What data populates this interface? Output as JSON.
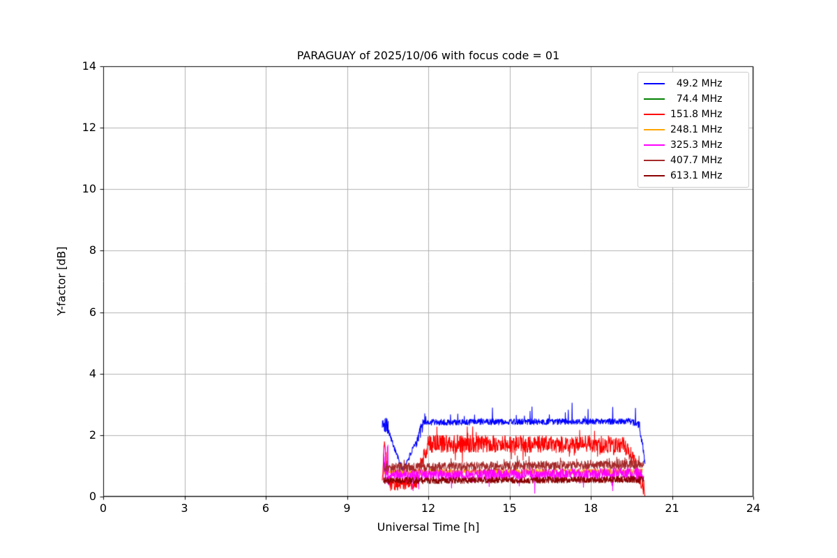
{
  "figure": {
    "title": "PARAGUAY of 2025/10/06 with focus code = 01",
    "xlabel": "Universal Time [h]",
    "ylabel": "Y-factor [dB]"
  },
  "chart_data": {
    "type": "line",
    "title": "PARAGUAY of 2025/10/06 with focus code = 01",
    "xlabel": "Universal Time [h]",
    "ylabel": "Y-factor [dB]",
    "xlim": [
      0,
      24
    ],
    "ylim": [
      0,
      14
    ],
    "x_ticks": [
      0,
      3,
      6,
      9,
      12,
      15,
      18,
      21,
      24
    ],
    "y_ticks": [
      0,
      2,
      4,
      6,
      8,
      10,
      12,
      14
    ],
    "grid": true,
    "grid_color": "#b0b0b0",
    "legend_position": "upper right",
    "series": [
      {
        "name": "  49.2 MHz",
        "color": "#0000ff",
        "seed": 101,
        "segments": [
          {
            "x0": 10.3,
            "x1": 10.52,
            "y0": 2.45,
            "y1": 2.3,
            "noise": 0.28,
            "spike": 0.3,
            "spike_p": 0.06
          },
          {
            "x0": 10.52,
            "x1": 11.05,
            "y0": 2.15,
            "y1": 0.85,
            "noise": 0.1
          },
          {
            "x0": 11.05,
            "x1": 11.55,
            "y0": 0.85,
            "y1": 1.75,
            "noise": 0.1
          },
          {
            "x0": 11.55,
            "x1": 11.9,
            "y0": 1.8,
            "y1": 2.55,
            "noise": 0.22,
            "spike": 0.4,
            "spike_p": 0.05
          },
          {
            "x0": 11.9,
            "x1": 19.45,
            "y0": 2.42,
            "y1": 2.45,
            "noise": 0.1,
            "spike": 0.55,
            "spike_p": 0.03
          },
          {
            "x0": 19.45,
            "x1": 19.8,
            "y0": 2.45,
            "y1": 2.35,
            "noise": 0.12,
            "spike": 0.7,
            "spike_p": 0.04
          },
          {
            "x0": 19.8,
            "x1": 20.0,
            "y0": 2.3,
            "y1": 1.15,
            "noise": 0.15
          }
        ]
      },
      {
        "name": "  74.4 MHz",
        "color": "#008000",
        "seed": 202,
        "segments": []
      },
      {
        "name": "151.8 MHz",
        "color": "#ff0000",
        "seed": 303,
        "segments": [
          {
            "x0": 10.3,
            "x1": 10.38,
            "y0": 0.4,
            "y1": 1.85,
            "noise": 0.15
          },
          {
            "x0": 10.38,
            "x1": 10.55,
            "y0": 1.8,
            "y1": 0.4,
            "noise": 0.15
          },
          {
            "x0": 10.55,
            "x1": 11.55,
            "y0": 0.4,
            "y1": 0.45,
            "noise": 0.2,
            "drop": 0.35,
            "drop_p": 0.1
          },
          {
            "x0": 11.55,
            "x1": 12.0,
            "y0": 0.55,
            "y1": 1.7,
            "noise": 0.3
          },
          {
            "x0": 12.0,
            "x1": 19.25,
            "y0": 1.72,
            "y1": 1.7,
            "noise": 0.28,
            "spike": 0.35,
            "spike_p": 0.05,
            "drop": 0.45,
            "drop_p": 0.05
          },
          {
            "x0": 19.25,
            "x1": 19.65,
            "y0": 1.6,
            "y1": 1.2,
            "noise": 0.25
          },
          {
            "x0": 19.65,
            "x1": 20.0,
            "y0": 1.1,
            "y1": 0.15,
            "noise": 0.3,
            "drop": 0.5,
            "drop_p": 0.2
          }
        ]
      },
      {
        "name": "248.1 MHz",
        "color": "#ffa500",
        "seed": 404,
        "segments": [
          {
            "x0": 10.35,
            "x1": 19.92,
            "y0": 0.8,
            "y1": 0.82,
            "noise": 0.09
          }
        ]
      },
      {
        "name": "325.3 MHz",
        "color": "#ff00ff",
        "seed": 505,
        "segments": [
          {
            "x0": 10.35,
            "x1": 10.55,
            "y0": 0.95,
            "y1": 0.75,
            "noise": 0.45,
            "spike": 0.8,
            "spike_p": 0.15
          },
          {
            "x0": 10.55,
            "x1": 19.92,
            "y0": 0.7,
            "y1": 0.75,
            "noise": 0.18,
            "spike": 0.2,
            "spike_p": 0.05,
            "drop": 0.5,
            "drop_p": 0.04
          }
        ]
      },
      {
        "name": "407.7 MHz",
        "color": "#a52a2a",
        "seed": 606,
        "segments": [
          {
            "x0": 10.35,
            "x1": 19.95,
            "y0": 0.95,
            "y1": 1.05,
            "noise": 0.15,
            "spike": 0.2,
            "spike_p": 0.05
          }
        ]
      },
      {
        "name": "613.1 MHz",
        "color": "#8b0000",
        "seed": 707,
        "segments": [
          {
            "x0": 10.35,
            "x1": 19.95,
            "y0": 0.52,
            "y1": 0.56,
            "noise": 0.11
          }
        ]
      }
    ]
  }
}
